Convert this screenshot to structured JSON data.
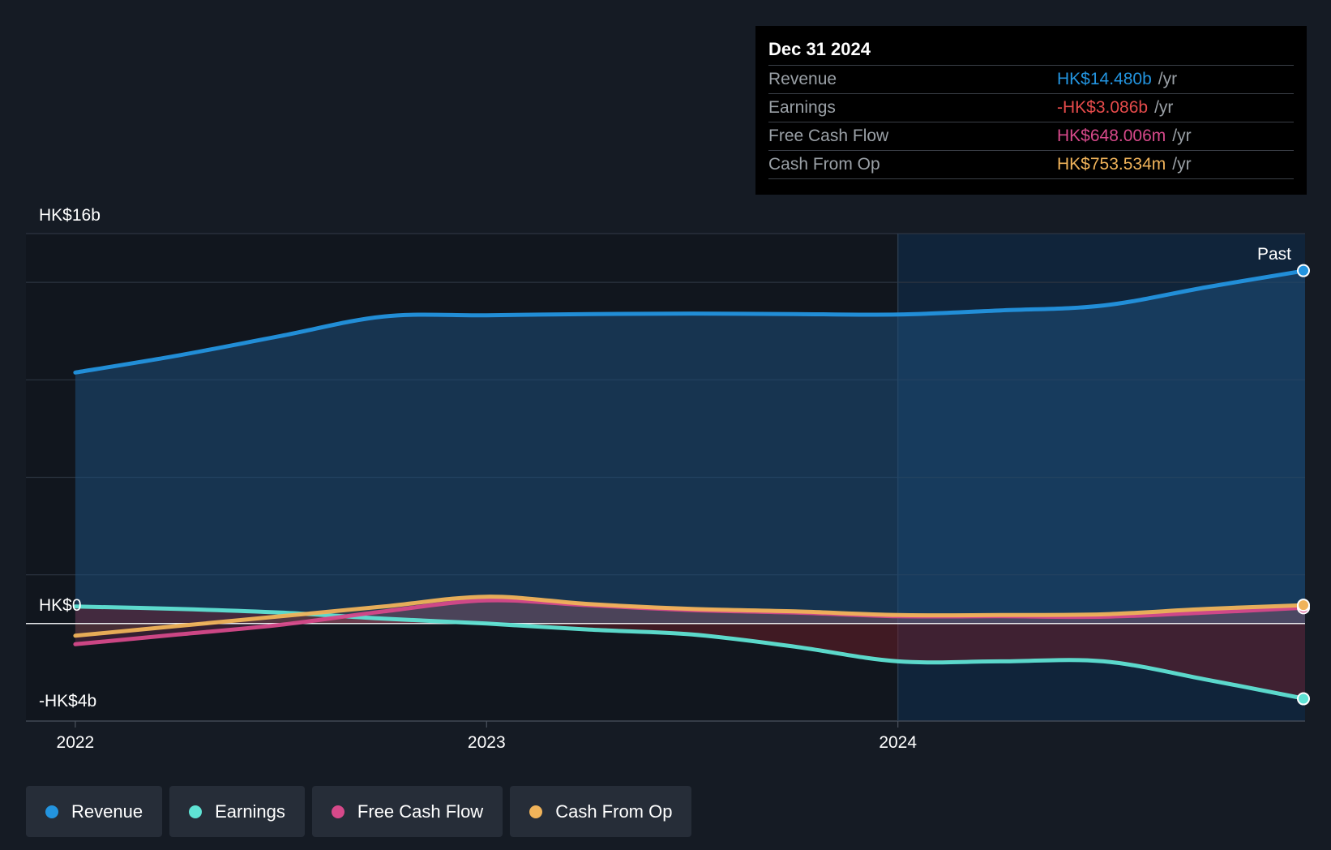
{
  "tooltip": {
    "date": "Dec 31 2024",
    "rows": [
      {
        "label": "Revenue",
        "value": "HK$14.480b",
        "unit": "/yr",
        "color": "#2394df"
      },
      {
        "label": "Earnings",
        "value": "-HK$3.086b",
        "unit": "/yr",
        "color": "#e64b4b"
      },
      {
        "label": "Free Cash Flow",
        "value": "HK$648.006m",
        "unit": "/yr",
        "color": "#d6498a"
      },
      {
        "label": "Cash From Op",
        "value": "HK$753.534m",
        "unit": "/yr",
        "color": "#f0b35a"
      }
    ]
  },
  "past_label": "Past",
  "legend": [
    {
      "label": "Revenue",
      "color": "#2394df"
    },
    {
      "label": "Earnings",
      "color": "#5fe3d4"
    },
    {
      "label": "Free Cash Flow",
      "color": "#d6498a"
    },
    {
      "label": "Cash From Op",
      "color": "#f0b35a"
    }
  ],
  "chart_data": {
    "type": "line",
    "y_tick_labels": [
      "HK$16b",
      "HK$0",
      "-HK$4b"
    ],
    "x_tick_labels": [
      "2022",
      "2023",
      "2024"
    ],
    "ylim": [
      -4,
      16
    ],
    "xlim": [
      2021.88,
      2024.99
    ],
    "series": [
      {
        "name": "Revenue",
        "color": "#2394df",
        "x": [
          2022.0,
          2022.25,
          2022.5,
          2022.75,
          2023.0,
          2023.25,
          2023.5,
          2023.75,
          2024.0,
          2024.25,
          2024.5,
          2024.75,
          2025.0
        ],
        "y": [
          10.3,
          11.0,
          11.8,
          12.6,
          12.65,
          12.7,
          12.72,
          12.7,
          12.68,
          12.85,
          13.05,
          13.8,
          14.48
        ]
      },
      {
        "name": "Earnings",
        "color": "#5fe3d4",
        "x": [
          2022.0,
          2022.25,
          2022.5,
          2022.75,
          2023.0,
          2023.25,
          2023.5,
          2023.75,
          2024.0,
          2024.25,
          2024.5,
          2024.75,
          2025.0
        ],
        "y": [
          0.7,
          0.6,
          0.45,
          0.2,
          0.0,
          -0.25,
          -0.45,
          -0.95,
          -1.55,
          -1.55,
          -1.55,
          -2.3,
          -3.086
        ]
      },
      {
        "name": "Free Cash Flow",
        "color": "#d6498a",
        "x": [
          2022.0,
          2022.25,
          2022.5,
          2022.75,
          2023.0,
          2023.25,
          2023.5,
          2023.75,
          2024.0,
          2024.25,
          2024.5,
          2024.75,
          2025.0
        ],
        "y": [
          -0.85,
          -0.45,
          -0.05,
          0.5,
          0.95,
          0.75,
          0.55,
          0.45,
          0.3,
          0.3,
          0.28,
          0.45,
          0.648
        ]
      },
      {
        "name": "Cash From Op",
        "color": "#f0b35a",
        "x": [
          2022.0,
          2022.25,
          2022.5,
          2022.75,
          2023.0,
          2023.25,
          2023.5,
          2023.75,
          2024.0,
          2024.25,
          2024.5,
          2024.75,
          2025.0
        ],
        "y": [
          -0.5,
          -0.1,
          0.3,
          0.7,
          1.1,
          0.8,
          0.6,
          0.5,
          0.35,
          0.35,
          0.38,
          0.6,
          0.754
        ]
      }
    ]
  }
}
